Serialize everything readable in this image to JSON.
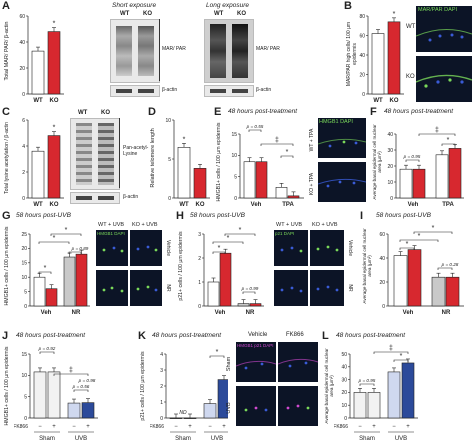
{
  "colors": {
    "wt": "#ffffff",
    "ko": "#d7282f",
    "veh_wt": "#ffffff",
    "nr_wt": "#c9c9c9",
    "sham": "#f2f2f2",
    "uvb_vehicle": "#cfd8ef",
    "uvb_fk866": "#2c4a9a",
    "micro_bg": "#0c1426",
    "dapi": "#3a5bd6",
    "green_stain": "#7ad85a",
    "magenta_stain": "#d04ad0"
  },
  "panels": {
    "A": {
      "label": "A",
      "ylabel": "Total MAR/ PAR/ β-actin",
      "short_exposure": "Short exposure",
      "long_exposure": "Long exposure",
      "lanes": [
        "WT",
        "KO"
      ],
      "blot_label": "MAR/ PAR",
      "loading": "β-actin",
      "xlabels": [
        "WT",
        "KO"
      ],
      "star": "*"
    },
    "B": {
      "label": "B",
      "ylabel": "MAR/PAR high cells/ 100 µm epidermis",
      "xlabels": [
        "WT",
        "KO"
      ],
      "star": "*",
      "img_title": "MAR/PAR DAPI",
      "row_labels": [
        "WT",
        "KO"
      ]
    },
    "C": {
      "label": "C",
      "ylabel": "Total lysine acetylation / β-actin",
      "xlabels": [
        "WT",
        "KO"
      ],
      "star": "*",
      "lanes": [
        "WT",
        "KO"
      ],
      "blot_label": "Pan-acetyl-Lysine",
      "loading": "β-actin"
    },
    "D": {
      "label": "D",
      "ylabel": "Relative telomere length",
      "xlabels": [
        "WT",
        "KO"
      ],
      "star": "*"
    },
    "E": {
      "label": "E",
      "title": "48 hours post-treatment",
      "ylabel": "HMGB1+ cells / 100 µm epidermis",
      "groups": [
        "Veh",
        "TPA"
      ],
      "p1": "p = 0.55",
      "star": "*",
      "dagger": "‡",
      "img_labels": [
        "WT + TPA",
        "KO + TPA"
      ],
      "img_title": "HMGB1 DAPI"
    },
    "F": {
      "label": "F",
      "title": "48 hours post-treatment",
      "ylabel": "Average basal epidermal cell nuclear area (µm²)",
      "groups": [
        "Veh",
        "TPA"
      ],
      "p1": "p = 0.95",
      "star": "*",
      "dagger": "‡"
    },
    "G": {
      "label": "G",
      "title": "58 hours post-UVB",
      "ylabel": "HMGB1+ cells / 100 µm epidermis",
      "groups": [
        "Veh",
        "NR"
      ],
      "p1": "p = 0.89",
      "star": "*",
      "col_labels": [
        "WT + UVB",
        "KO + UVB"
      ],
      "row_labels": [
        "Vehicle",
        "NR"
      ],
      "img_title": "HMGB1 DAPI"
    },
    "H": {
      "label": "H",
      "title": "58 hours post-UVB",
      "ylabel": "p21+ cells / 100 µm epidermis",
      "groups": [
        "Veh",
        "NR"
      ],
      "p1": "p = 0.99",
      "star": "*",
      "col_labels": [
        "WT + UVB",
        "KO + UVB"
      ],
      "row_labels": [
        "Vehicle",
        "NR"
      ],
      "img_title": "p21 DAPI"
    },
    "I": {
      "label": "I",
      "title": "58 hours post-UVB",
      "ylabel": "Average basal epidermal cell nuclear area (µm²)",
      "groups": [
        "Veh",
        "NR"
      ],
      "p1": "p = 0.28",
      "star": "*"
    },
    "J": {
      "label": "J",
      "title": "48 hours post-treatment",
      "ylabel": "HMGB1+ cells / 100 µm epidermis",
      "p1": "p = 0.92",
      "p2": "p = 0.56",
      "p3": "p = 0.98",
      "dagger": "‡",
      "fk866": "FK866",
      "signs": [
        "−",
        "+",
        "−",
        "+"
      ],
      "groups": [
        "Sham",
        "UVB"
      ]
    },
    "K": {
      "label": "K",
      "title": "48 hours post-treatment",
      "ylabel": "p21+ cells / 100 µm epidermis",
      "nd": "ND",
      "star": "*",
      "fk866": "FK866",
      "signs": [
        "−",
        "+",
        "−",
        "+"
      ],
      "groups": [
        "Sham",
        "UVB"
      ],
      "col_labels": [
        "Vehicle",
        "FK866"
      ],
      "row_labels": [
        "Sham",
        "UVB"
      ],
      "img_title": "HMGB1 p21 DAPI"
    },
    "L": {
      "label": "L",
      "title": "48 hours post-treatment",
      "ylabel": "Average basal epidermal cell nuclear area (µm²)",
      "p1": "p = 0.95",
      "star": "*",
      "dagger": "‡",
      "fk866": "FK866",
      "signs": [
        "−",
        "+",
        "−",
        "+"
      ],
      "groups": [
        "Sham",
        "UVB"
      ]
    }
  },
  "chart_data": [
    {
      "panel": "A",
      "type": "bar",
      "categories": [
        "WT",
        "KO"
      ],
      "values": [
        33,
        48
      ],
      "ylim": [
        0,
        60
      ],
      "yticks": [
        0,
        20,
        40,
        60
      ]
    },
    {
      "panel": "B",
      "type": "bar",
      "categories": [
        "WT",
        "KO"
      ],
      "values": [
        62,
        74
      ],
      "ylim": [
        0,
        80
      ],
      "yticks": [
        0,
        20,
        40,
        60,
        80
      ]
    },
    {
      "panel": "C",
      "type": "bar",
      "categories": [
        "WT",
        "KO"
      ],
      "values": [
        3.6,
        4.8
      ],
      "ylim": [
        0,
        6
      ],
      "yticks": [
        0,
        2,
        4,
        6
      ]
    },
    {
      "panel": "D",
      "type": "bar",
      "categories": [
        "WT",
        "KO"
      ],
      "values": [
        6.5,
        3.8
      ],
      "ylim": [
        0,
        10
      ],
      "yticks": [
        0,
        5,
        10
      ]
    },
    {
      "panel": "E",
      "type": "bar",
      "categories": [
        "Veh",
        "TPA"
      ],
      "series": [
        {
          "values": [
            8.5,
            2.5
          ]
        },
        {
          "values": [
            8.5,
            0.5
          ]
        }
      ],
      "ylim": [
        0,
        15
      ],
      "yticks": [
        0,
        5,
        10,
        15
      ]
    },
    {
      "panel": "F",
      "type": "bar",
      "categories": [
        "Veh",
        "TPA"
      ],
      "series": [
        {
          "values": [
            18,
            27
          ]
        },
        {
          "values": [
            18,
            31
          ]
        }
      ],
      "ylim": [
        0,
        40
      ],
      "yticks": [
        0,
        10,
        20,
        30,
        40
      ]
    },
    {
      "panel": "G",
      "type": "bar",
      "categories": [
        "Veh",
        "NR"
      ],
      "series": [
        {
          "values": [
            10,
            17
          ]
        },
        {
          "values": [
            6,
            18
          ]
        }
      ],
      "ylim": [
        0,
        25
      ],
      "yticks": [
        0,
        5,
        10,
        15,
        20,
        25
      ]
    },
    {
      "panel": "H",
      "type": "bar",
      "categories": [
        "Veh",
        "NR"
      ],
      "series": [
        {
          "values": [
            1.0,
            0.1
          ]
        },
        {
          "values": [
            2.2,
            0.1
          ]
        }
      ],
      "ylim": [
        0,
        3
      ],
      "yticks": [
        0,
        1,
        2,
        3
      ]
    },
    {
      "panel": "I",
      "type": "bar",
      "categories": [
        "Veh",
        "NR"
      ],
      "series": [
        {
          "values": [
            42,
            24
          ]
        },
        {
          "values": [
            47,
            24
          ]
        }
      ],
      "ylim": [
        0,
        60
      ],
      "yticks": [
        0,
        20,
        40,
        60
      ]
    },
    {
      "panel": "J",
      "type": "bar",
      "categories": [
        "Sham −",
        "Sham +",
        "UVB −",
        "UVB +"
      ],
      "values": [
        10.8,
        10.8,
        3.5,
        3.6
      ],
      "ylim": [
        0,
        15
      ],
      "yticks": [
        0,
        5,
        10,
        15
      ]
    },
    {
      "panel": "K",
      "type": "bar",
      "categories": [
        "Sham −",
        "Sham +",
        "UVB −",
        "UVB +"
      ],
      "values": [
        0,
        0,
        0.9,
        2.4
      ],
      "ylim": [
        0,
        4
      ],
      "yticks": [
        0,
        1,
        2,
        3,
        4
      ]
    },
    {
      "panel": "L",
      "type": "bar",
      "categories": [
        "Sham −",
        "Sham +",
        "UVB −",
        "UVB +"
      ],
      "values": [
        20,
        20,
        36,
        43
      ],
      "ylim": [
        0,
        50
      ],
      "yticks": [
        0,
        10,
        20,
        30,
        40,
        50
      ]
    }
  ]
}
